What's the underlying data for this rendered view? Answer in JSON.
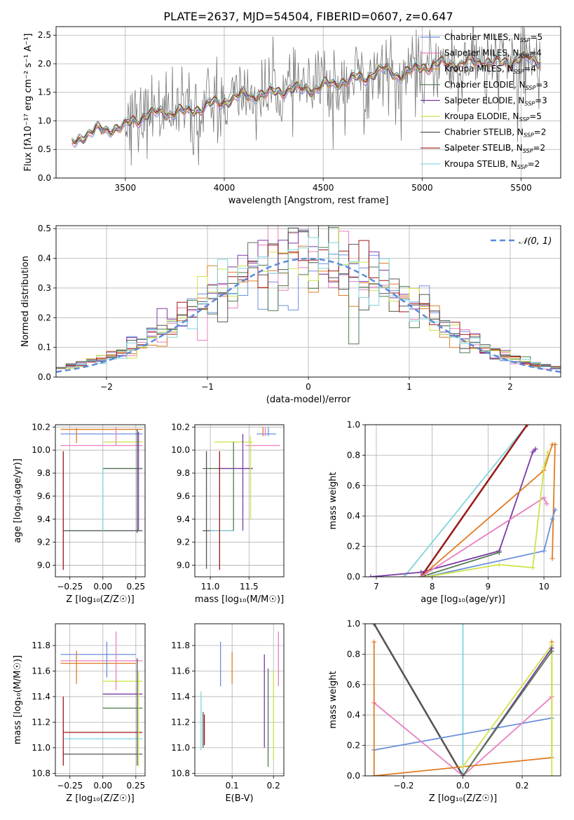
{
  "colors": {
    "chabrier_miles": "#6b8fde",
    "salpeter_miles": "#e87fbf",
    "kroupa_miles": "#e07b22",
    "chabrier_elodie": "#4f7a4f",
    "salpeter_elodie": "#7b3aa8",
    "kroupa_elodie": "#cfe34a",
    "chabrier_stelib": "#555555",
    "salpeter_stelib": "#a01818",
    "kroupa_stelib": "#7fd5dc",
    "data": "#777777",
    "gauss": "#5b8bd9",
    "grid": "#b0b0b0"
  },
  "legend_top": [
    {
      "key": "chabrier_miles",
      "pre": "Chabrier MILES, N",
      "sub": "SSP",
      "post": "=5"
    },
    {
      "key": "salpeter_miles",
      "pre": "Salpeter MILES, N",
      "sub": "SSP",
      "post": "=4"
    },
    {
      "key": "kroupa_miles",
      "pre": "Kroupa MILES, N",
      "sub": "SSP",
      "post": "=4"
    },
    {
      "key": "chabrier_elodie",
      "pre": "Chabrier ELODIE, N",
      "sub": "SSP",
      "post": "=3"
    },
    {
      "key": "salpeter_elodie",
      "pre": "Salpeter ELODIE, N",
      "sub": "SSP",
      "post": "=3"
    },
    {
      "key": "kroupa_elodie",
      "pre": "Kroupa ELODIE, N",
      "sub": "SSP",
      "post": "=5"
    },
    {
      "key": "chabrier_stelib",
      "pre": "Chabrier STELIB, N",
      "sub": "SSP",
      "post": "=2"
    },
    {
      "key": "salpeter_stelib",
      "pre": "Salpeter STELIB, N",
      "sub": "SSP",
      "post": "=2"
    },
    {
      "key": "kroupa_stelib",
      "pre": "Kroupa STELIB, N",
      "sub": "SSP",
      "post": "=2"
    }
  ],
  "chart_data": [
    {
      "id": "spectrum",
      "type": "line",
      "title": "PLATE=2637, MJD=54504, FIBERID=0607, z=0.647",
      "xlabel": "wavelength [Angstrom, rest frame]",
      "ylabel": "Flux [f$_\\lambda$10$^{-17}$ erg cm$^{-2}$ s$^{-1}$ A$^{-1}$]",
      "ylabel_display": "Flux [fλ10⁻¹⁷ erg cm⁻² s⁻¹ A⁻¹]",
      "xlim": [
        3150,
        5700
      ],
      "ylim": [
        0,
        2.65
      ],
      "xticks": [
        3500,
        4000,
        4500,
        5000,
        5500
      ],
      "yticks": [
        0.0,
        0.5,
        1.0,
        1.5,
        2.0,
        2.5
      ],
      "data_trend": {
        "x": [
          3230,
          3300,
          3400,
          3500,
          3540,
          3600,
          3700,
          3800,
          3900,
          4000,
          4100,
          4200,
          4300,
          4400,
          4500,
          4600,
          4700,
          4800,
          4900,
          5000,
          5100,
          5200,
          5300,
          5400,
          5500,
          5600
        ],
        "y": [
          0.6,
          0.78,
          0.85,
          0.9,
          1.0,
          1.1,
          1.15,
          1.15,
          1.25,
          1.35,
          1.45,
          1.45,
          1.55,
          1.55,
          1.6,
          1.7,
          1.75,
          1.9,
          1.8,
          1.95,
          2.0,
          2.0,
          2.05,
          2.0,
          2.1,
          2.05
        ]
      },
      "noise_start": 3500
    },
    {
      "id": "residuals",
      "type": "line",
      "xlabel": "(data-model)/error",
      "ylabel": "Normed distribution",
      "xlim": [
        -2.5,
        2.5
      ],
      "ylim": [
        0,
        0.51
      ],
      "xticks": [
        -2,
        -1,
        0,
        1,
        2
      ],
      "yticks": [
        0.0,
        0.1,
        0.2,
        0.3,
        0.4,
        0.5
      ],
      "legend": {
        "label": "𝒩(0, 1)",
        "placement": "top-right"
      },
      "bin_width": 0.1
    },
    {
      "id": "age_vs_Z",
      "type": "scatter",
      "xlabel": "Z [log₁₀(Z/Z☉)]",
      "ylabel": "age  [log₁₀(age/yr)]",
      "xlim": [
        -0.36,
        0.32
      ],
      "ylim": [
        8.9,
        10.22
      ],
      "xticks": [
        -0.25,
        0.0,
        0.25
      ],
      "xticklabels": [
        "−0.25",
        "0.00",
        "0.25"
      ],
      "yticks": [
        9.0,
        9.2,
        9.4,
        9.6,
        9.8,
        10.0,
        10.2
      ],
      "hlines": [
        {
          "key": "kroupa_miles",
          "y": 10.18,
          "x0": -0.32,
          "x1": 0.3
        },
        {
          "key": "chabrier_miles",
          "y": 10.14,
          "x0": -0.32,
          "x1": 0.3
        },
        {
          "key": "salpeter_miles",
          "y": 10.04,
          "x0": -0.32,
          "x1": 0.3
        },
        {
          "key": "kroupa_elodie",
          "y": 10.07,
          "x0": 0.0,
          "x1": 0.3
        },
        {
          "key": "salpeter_elodie",
          "y": 9.84,
          "x0": 0.0,
          "x1": 0.3
        },
        {
          "key": "chabrier_elodie",
          "y": 9.84,
          "x0": 0.0,
          "x1": 0.3
        },
        {
          "key": "kroupa_stelib",
          "y": 9.3,
          "x0": -0.3,
          "x1": 0.3
        },
        {
          "key": "chabrier_stelib",
          "y": 9.3,
          "x0": -0.3,
          "x1": 0.3
        }
      ],
      "vlines": [
        {
          "key": "salpeter_stelib",
          "x": -0.3,
          "y0": 8.96,
          "y1": 9.99
        },
        {
          "key": "kroupa_stelib",
          "x": 0.0,
          "y0": 9.3,
          "y1": 9.84
        },
        {
          "key": "kroupa_miles",
          "x": -0.2,
          "y0": 10.06,
          "y1": 10.19
        },
        {
          "key": "salpeter_miles",
          "x": 0.1,
          "y0": 10.04,
          "y1": 10.2
        },
        {
          "key": "chabrier_stelib",
          "x": 0.26,
          "y0": 9.28,
          "y1": 10.18
        },
        {
          "key": "salpeter_elodie",
          "x": 0.27,
          "y0": 9.3,
          "y1": 10.16
        }
      ]
    },
    {
      "id": "age_vs_mass",
      "type": "scatter",
      "xlabel": "mass [log₁₀(M/M☉)]",
      "xlim": [
        10.8,
        11.95
      ],
      "ylim": [
        8.9,
        10.22
      ],
      "xticks": [
        11.0,
        11.5
      ],
      "yticks": [
        9.0,
        9.2,
        9.4,
        9.6,
        9.8,
        10.0,
        10.2
      ],
      "hlines": [
        {
          "key": "kroupa_elodie",
          "y": 10.07,
          "x0": 11.05,
          "x1": 11.55
        },
        {
          "key": "chabrier_miles",
          "y": 10.14,
          "x0": 11.6,
          "x1": 11.85
        },
        {
          "key": "salpeter_miles",
          "y": 10.04,
          "x0": 11.45,
          "x1": 11.9
        },
        {
          "key": "chabrier_elodie",
          "y": 9.84,
          "x0": 10.9,
          "x1": 11.55
        },
        {
          "key": "salpeter_elodie",
          "y": 9.84,
          "x0": 11.1,
          "x1": 11.55
        },
        {
          "key": "chabrier_stelib",
          "y": 9.3,
          "x0": 10.9,
          "x1": 11.3
        },
        {
          "key": "kroupa_stelib",
          "y": 9.3,
          "x0": 11.0,
          "x1": 11.3
        }
      ],
      "vlines": [
        {
          "key": "chabrier_stelib",
          "x": 10.95,
          "y0": 8.97,
          "y1": 9.99
        },
        {
          "key": "salpeter_stelib",
          "x": 11.12,
          "y0": 8.96,
          "y1": 9.99
        },
        {
          "key": "chabrier_elodie",
          "x": 11.3,
          "y0": 9.3,
          "y1": 10.07
        },
        {
          "key": "salpeter_elodie",
          "x": 11.42,
          "y0": 9.3,
          "y1": 10.14
        },
        {
          "key": "kroupa_elodie",
          "x": 11.52,
          "y0": 9.4,
          "y1": 10.12
        },
        {
          "key": "chabrier_miles",
          "x": 11.75,
          "y0": 10.12,
          "y1": 10.2
        },
        {
          "key": "salpeter_miles",
          "x": 11.71,
          "y0": 10.12,
          "y1": 10.2
        },
        {
          "key": "kroupa_miles",
          "x": 11.68,
          "y0": 10.12,
          "y1": 10.2
        }
      ]
    },
    {
      "id": "massweight_vs_age",
      "type": "line",
      "xlabel": "age  [log₁₀(age/yr)]",
      "ylabel": "mass weight",
      "xlim": [
        6.8,
        10.3
      ],
      "ylim": [
        0,
        1
      ],
      "xticks": [
        7,
        8,
        9,
        10
      ],
      "yticks": [
        0.0,
        0.2,
        0.4,
        0.6,
        0.8,
        1.0
      ],
      "series": [
        {
          "key": "kroupa_stelib",
          "x": [
            7.5,
            9.7
          ],
          "y": [
            0,
            1
          ]
        },
        {
          "key": "chabrier_stelib",
          "x": [
            7.8,
            9.7
          ],
          "y": [
            0,
            1
          ]
        },
        {
          "key": "salpeter_stelib",
          "x": [
            7.8,
            9.7
          ],
          "y": [
            0,
            1
          ]
        },
        {
          "key": "salpeter_elodie",
          "x": [
            6.9,
            7.8,
            9.2,
            9.8,
            9.85
          ],
          "y": [
            0,
            0.03,
            0.17,
            0.82,
            0.84
          ]
        },
        {
          "key": "chabrier_elodie",
          "x": [
            7.8,
            9.2
          ],
          "y": [
            0,
            0.16
          ]
        },
        {
          "key": "kroupa_miles",
          "x": [
            7.8,
            10.0,
            10.15,
            10.2,
            10.15
          ],
          "y": [
            0,
            0.7,
            0.87,
            0.87,
            0.12
          ]
        },
        {
          "key": "chabrier_miles",
          "x": [
            7.9,
            10.0,
            10.15,
            10.2
          ],
          "y": [
            0,
            0.17,
            0.38,
            0.44
          ]
        },
        {
          "key": "salpeter_miles",
          "x": [
            7.8,
            10.0,
            10.05
          ],
          "y": [
            0,
            0.52,
            0.48
          ]
        },
        {
          "key": "kroupa_elodie",
          "x": [
            7.9,
            9.2,
            9.8,
            10.0,
            10.07
          ],
          "y": [
            0,
            0.08,
            0.06,
            0.72,
            0.82
          ]
        }
      ]
    },
    {
      "id": "mass_vs_Z",
      "type": "scatter",
      "xlabel": "Z [log₁₀(Z/Z☉)]",
      "ylabel": "mass [log₁₀(M/M☉)]",
      "xlim": [
        -0.36,
        0.32
      ],
      "ylim": [
        10.78,
        11.97
      ],
      "xticks": [
        -0.25,
        0.0,
        0.25
      ],
      "xticklabels": [
        "−0.25",
        "0.00",
        "0.25"
      ],
      "yticks": [
        10.8,
        11.0,
        11.2,
        11.4,
        11.6,
        11.8
      ],
      "hlines": [
        {
          "key": "chabrier_miles",
          "y": 11.73,
          "x0": -0.32,
          "x1": 0.25
        },
        {
          "key": "salpeter_miles",
          "y": 11.68,
          "x0": -0.32,
          "x1": 0.3
        },
        {
          "key": "kroupa_miles",
          "y": 11.66,
          "x0": -0.32,
          "x1": 0.25
        },
        {
          "key": "kroupa_elodie",
          "y": 11.52,
          "x0": 0.0,
          "x1": 0.3
        },
        {
          "key": "salpeter_elodie",
          "y": 11.42,
          "x0": 0.0,
          "x1": 0.3
        },
        {
          "key": "chabrier_elodie",
          "y": 11.31,
          "x0": 0.0,
          "x1": 0.3
        },
        {
          "key": "salpeter_stelib",
          "y": 11.12,
          "x0": -0.3,
          "x1": 0.3
        },
        {
          "key": "kroupa_stelib",
          "y": 11.07,
          "x0": -0.3,
          "x1": 0.3
        },
        {
          "key": "chabrier_stelib",
          "y": 10.95,
          "x0": -0.3,
          "x1": 0.3
        }
      ],
      "vlines": [
        {
          "key": "salpeter_stelib",
          "x": -0.3,
          "y0": 10.86,
          "y1": 11.4
        },
        {
          "key": "kroupa_miles",
          "x": -0.2,
          "y0": 11.5,
          "y1": 11.76
        },
        {
          "key": "chabrier_miles",
          "x": 0.03,
          "y0": 11.55,
          "y1": 11.83
        },
        {
          "key": "salpeter_miles",
          "x": 0.1,
          "y0": 11.45,
          "y1": 11.91
        },
        {
          "key": "chabrier_stelib",
          "x": 0.26,
          "y0": 10.86,
          "y1": 11.7
        },
        {
          "key": "kroupa_elodie",
          "x": 0.27,
          "y0": 10.85,
          "y1": 11.6
        }
      ]
    },
    {
      "id": "mass_vs_ebv",
      "type": "scatter",
      "xlabel": "E(B-V)",
      "xlim": [
        0.01,
        0.225
      ],
      "ylim": [
        10.78,
        11.97
      ],
      "xticks": [
        0.1,
        0.2
      ],
      "yticks": [
        10.8,
        11.0,
        11.2,
        11.4,
        11.6,
        11.8
      ],
      "vlines": [
        {
          "key": "kroupa_stelib",
          "x": 0.025,
          "y0": 10.98,
          "y1": 11.44
        },
        {
          "key": "chabrier_stelib",
          "x": 0.03,
          "y0": 11.0,
          "y1": 11.28
        },
        {
          "key": "salpeter_stelib",
          "x": 0.033,
          "y0": 11.02,
          "y1": 11.26
        },
        {
          "key": "chabrier_miles",
          "x": 0.072,
          "y0": 11.48,
          "y1": 11.83
        },
        {
          "key": "kroupa_miles",
          "x": 0.1,
          "y0": 11.5,
          "y1": 11.75
        },
        {
          "key": "salpeter_elodie",
          "x": 0.178,
          "y0": 11.0,
          "y1": 11.73
        },
        {
          "key": "chabrier_elodie",
          "x": 0.187,
          "y0": 10.85,
          "y1": 11.62
        },
        {
          "key": "kroupa_elodie",
          "x": 0.2,
          "y0": 10.9,
          "y1": 11.6
        },
        {
          "key": "salpeter_miles",
          "x": 0.212,
          "y0": 11.48,
          "y1": 11.91
        }
      ]
    },
    {
      "id": "massweight_vs_Z",
      "type": "line",
      "xlabel": "Z [log₁₀(Z/Z☉)]",
      "ylabel": "mass weight",
      "xlim": [
        -0.33,
        0.33
      ],
      "ylim": [
        0,
        1
      ],
      "xticks": [
        -0.2,
        0.0,
        0.2
      ],
      "xticklabels": [
        "−0.2",
        "0.0",
        "0.2"
      ],
      "yticks": [
        0.0,
        0.2,
        0.4,
        0.6,
        0.8,
        1.0
      ],
      "series": [
        {
          "key": "kroupa_stelib",
          "x": [
            0.0,
            0.0
          ],
          "y": [
            0,
            1
          ]
        },
        {
          "key": "salpeter_stelib",
          "x": [
            -0.3,
            0.0
          ],
          "y": [
            1.0,
            0.0
          ]
        },
        {
          "key": "chabrier_stelib",
          "x": [
            -0.3,
            0.0
          ],
          "y": [
            1.0,
            0.0
          ]
        },
        {
          "key": "chabrier_miles",
          "x": [
            -0.3,
            0.3
          ],
          "y": [
            0.17,
            0.38
          ]
        },
        {
          "key": "salpeter_miles",
          "x": [
            -0.3,
            0.0,
            0.3
          ],
          "y": [
            0.48,
            0.0,
            0.52
          ]
        },
        {
          "key": "kroupa_miles",
          "x": [
            -0.3,
            -0.3,
            0.3,
            0.3
          ],
          "y": [
            0.88,
            0.0,
            0.12,
            0.88
          ]
        },
        {
          "key": "kroupa_elodie",
          "x": [
            0.0,
            0.3,
            0.3
          ],
          "y": [
            0.06,
            0.86,
            0.0
          ]
        },
        {
          "key": "salpeter_elodie",
          "x": [
            0.0,
            0.3
          ],
          "y": [
            0.0,
            0.84
          ]
        },
        {
          "key": "chabrier_elodie",
          "x": [
            0.0,
            0.3
          ],
          "y": [
            0.0,
            0.82
          ]
        }
      ]
    }
  ]
}
